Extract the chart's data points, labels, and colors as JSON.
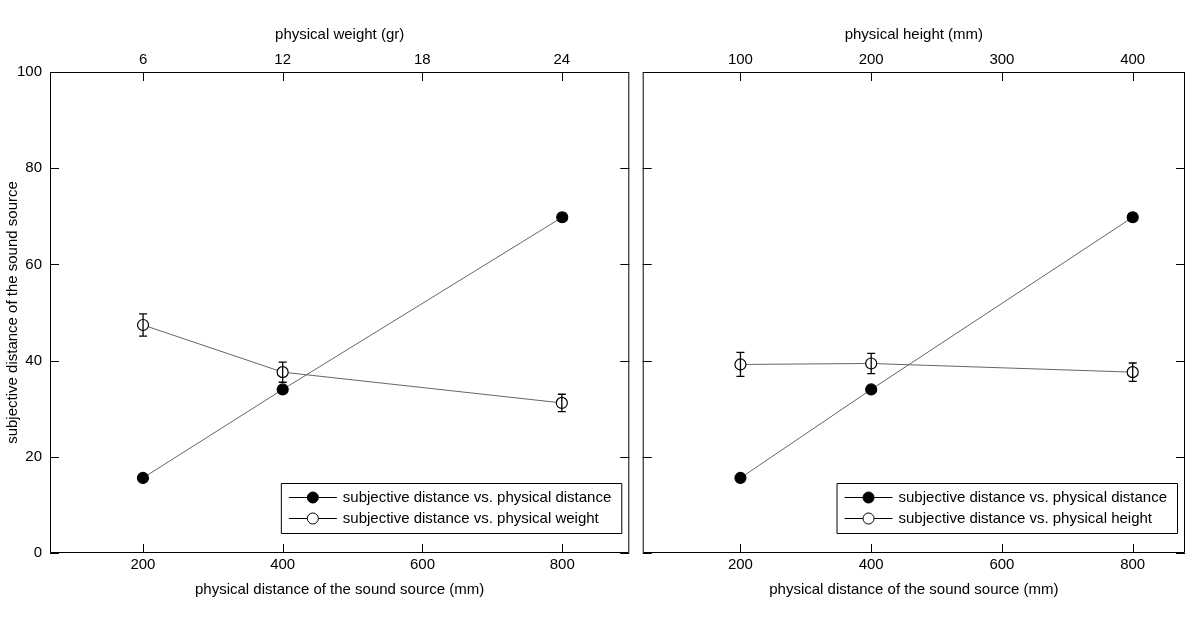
{
  "chart_data": [
    {
      "type": "line",
      "xlabel": "physical distance of the sound source (mm)",
      "x2label": "physical weight (gr)",
      "ylabel": "subjective distance of the sound source",
      "xlim": [
        67,
        896
      ],
      "xticks": [
        200,
        400,
        600,
        800
      ],
      "x2lim": [
        2,
        26.9
      ],
      "x2ticks": [
        6,
        12,
        18,
        24
      ],
      "ylim": [
        0,
        100
      ],
      "yticks": [
        0,
        20,
        40,
        60,
        80,
        100
      ],
      "series": [
        {
          "name": "subjective distance vs. physical distance",
          "color": "#000000",
          "x": [
            200,
            400,
            800
          ],
          "values": [
            15.6,
            34.0,
            69.8
          ],
          "errors": [
            null,
            null,
            0.8
          ]
        },
        {
          "name": "subjective distance vs. physical weight",
          "color": "#ffffff",
          "axis": "x2",
          "x": [
            6,
            12,
            24
          ],
          "values": [
            47.4,
            37.6,
            31.2
          ],
          "errors": [
            2.3,
            2.1,
            1.8
          ]
        }
      ],
      "marker": "circle",
      "grid": false,
      "legend": "bottom right"
    },
    {
      "type": "line",
      "xlabel": "physical distance of the sound source (mm)",
      "x2label": "physical height (mm)",
      "xlim": [
        50.5,
        880
      ],
      "xticks": [
        200,
        400,
        600,
        800
      ],
      "x2lim": [
        25.25,
        440
      ],
      "x2ticks": [
        100,
        200,
        300,
        400
      ],
      "ylim": [
        0,
        100
      ],
      "yticks": [
        0,
        20,
        40,
        60,
        80,
        100
      ],
      "series": [
        {
          "name": "subjective distance vs. physical distance",
          "color": "#000000",
          "x": [
            200,
            400,
            800
          ],
          "values": [
            15.6,
            34.0,
            69.8
          ],
          "errors": [
            null,
            null,
            0.8
          ]
        },
        {
          "name": "subjective distance vs. physical height",
          "color": "#ffffff",
          "axis": "x2",
          "x": [
            100,
            200,
            400
          ],
          "values": [
            39.2,
            39.4,
            37.6
          ],
          "errors": [
            2.5,
            2.1,
            1.9
          ]
        }
      ],
      "marker": "circle",
      "grid": false,
      "legend": "bottom right",
      "tick_labels": "x"
    }
  ]
}
